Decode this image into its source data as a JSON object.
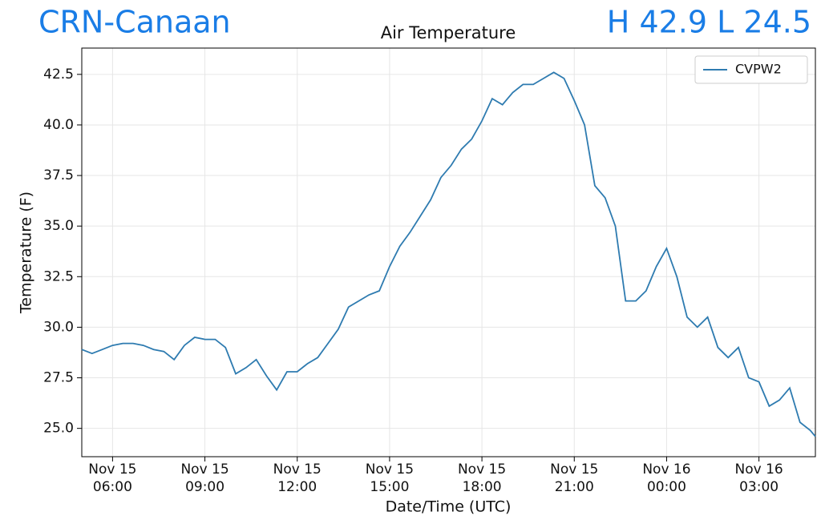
{
  "header": {
    "station": "CRN-Canaan",
    "extremes": "H 42.9 L 24.5"
  },
  "chart_data": {
    "type": "line",
    "title": "Air Temperature",
    "x_label": "Date/Time (UTC)",
    "y_label": "Temperature (F)",
    "x": [
      "Nov 15 05:00",
      "Nov 15 05:20",
      "Nov 15 05:40",
      "Nov 15 06:00",
      "Nov 15 06:20",
      "Nov 15 06:40",
      "Nov 15 07:00",
      "Nov 15 07:20",
      "Nov 15 07:40",
      "Nov 15 08:00",
      "Nov 15 08:20",
      "Nov 15 08:40",
      "Nov 15 09:00",
      "Nov 15 09:20",
      "Nov 15 09:40",
      "Nov 15 10:00",
      "Nov 15 10:20",
      "Nov 15 10:40",
      "Nov 15 11:00",
      "Nov 15 11:20",
      "Nov 15 11:40",
      "Nov 15 12:00",
      "Nov 15 12:20",
      "Nov 15 12:40",
      "Nov 15 13:00",
      "Nov 15 13:20",
      "Nov 15 13:40",
      "Nov 15 14:00",
      "Nov 15 14:20",
      "Nov 15 14:40",
      "Nov 15 15:00",
      "Nov 15 15:20",
      "Nov 15 15:40",
      "Nov 15 16:00",
      "Nov 15 16:20",
      "Nov 15 16:40",
      "Nov 15 17:00",
      "Nov 15 17:20",
      "Nov 15 17:40",
      "Nov 15 18:00",
      "Nov 15 18:20",
      "Nov 15 18:40",
      "Nov 15 19:00",
      "Nov 15 19:20",
      "Nov 15 19:40",
      "Nov 15 20:00",
      "Nov 15 20:20",
      "Nov 15 20:40",
      "Nov 15 21:00",
      "Nov 15 21:20",
      "Nov 15 21:40",
      "Nov 15 22:00",
      "Nov 15 22:20",
      "Nov 15 22:40",
      "Nov 15 23:00",
      "Nov 15 23:20",
      "Nov 15 23:40",
      "Nov 16 00:00",
      "Nov 16 00:20",
      "Nov 16 00:40",
      "Nov 16 01:00",
      "Nov 16 01:20",
      "Nov 16 01:40",
      "Nov 16 02:00",
      "Nov 16 02:20",
      "Nov 16 02:40",
      "Nov 16 03:00",
      "Nov 16 03:20",
      "Nov 16 03:40",
      "Nov 16 04:00",
      "Nov 16 04:20",
      "Nov 16 04:40",
      "Nov 16 04:50"
    ],
    "series": [
      {
        "name": "CVPW2",
        "color": "#2e7bb0",
        "values": [
          28.9,
          28.7,
          28.9,
          29.1,
          29.2,
          29.2,
          29.1,
          28.9,
          28.8,
          28.4,
          29.1,
          29.5,
          29.4,
          29.4,
          29.0,
          27.7,
          28.0,
          28.4,
          27.6,
          26.9,
          27.8,
          27.8,
          28.2,
          28.5,
          29.2,
          29.9,
          31.0,
          31.3,
          31.6,
          31.8,
          33.0,
          34.0,
          34.7,
          35.5,
          36.3,
          37.4,
          38.0,
          38.8,
          39.3,
          40.2,
          41.3,
          41.0,
          41.6,
          42.0,
          42.0,
          42.3,
          42.6,
          42.3,
          41.2,
          40.0,
          37.0,
          36.4,
          35.0,
          31.3,
          31.3,
          31.8,
          33.0,
          33.9,
          32.5,
          30.5,
          30.0,
          30.5,
          29.0,
          28.5,
          29.0,
          27.5,
          27.3,
          26.1,
          26.4,
          27.0,
          25.3,
          24.9,
          24.6
        ]
      }
    ],
    "xlim": [
      "Nov 15 05:00",
      "Nov 16 04:50"
    ],
    "xticks": [
      {
        "value": "Nov 15 06:00",
        "label": [
          "Nov 15",
          "06:00"
        ]
      },
      {
        "value": "Nov 15 09:00",
        "label": [
          "Nov 15",
          "09:00"
        ]
      },
      {
        "value": "Nov 15 12:00",
        "label": [
          "Nov 15",
          "12:00"
        ]
      },
      {
        "value": "Nov 15 15:00",
        "label": [
          "Nov 15",
          "15:00"
        ]
      },
      {
        "value": "Nov 15 18:00",
        "label": [
          "Nov 15",
          "18:00"
        ]
      },
      {
        "value": "Nov 15 21:00",
        "label": [
          "Nov 15",
          "21:00"
        ]
      },
      {
        "value": "Nov 16 00:00",
        "label": [
          "Nov 16",
          "00:00"
        ]
      },
      {
        "value": "Nov 16 03:00",
        "label": [
          "Nov 16",
          "03:00"
        ]
      }
    ],
    "ylim": [
      23.6,
      43.8
    ],
    "yticks": [
      {
        "value": 25,
        "label": "25.0"
      },
      27.5,
      {
        "value": 30,
        "label": "30.0"
      },
      32.5,
      {
        "value": 35,
        "label": "35.0"
      },
      37.5,
      {
        "value": 40,
        "label": "40.0"
      },
      42.5
    ],
    "grid": true,
    "legend": "upper right"
  }
}
